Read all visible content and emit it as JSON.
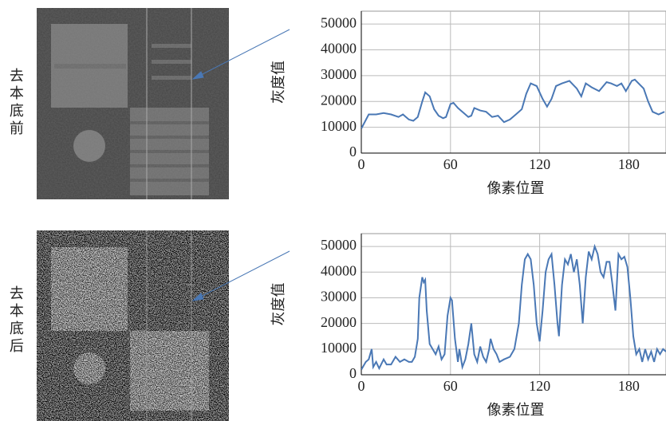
{
  "images": [
    {
      "label": "去本底前"
    },
    {
      "label": "去本底后"
    }
  ],
  "chart_data": [
    {
      "type": "line",
      "xlabel": "像素位置",
      "ylabel": "灰度值",
      "xlim": [
        0,
        205
      ],
      "ylim": [
        0,
        55000
      ],
      "xticks": [
        0,
        60,
        120,
        180
      ],
      "yticks": [
        0,
        10000,
        20000,
        30000,
        40000,
        50000
      ],
      "grid": true,
      "series": [
        {
          "color": "#4a78b5",
          "x": [
            0,
            5,
            10,
            15,
            20,
            25,
            28,
            32,
            35,
            38,
            41,
            43,
            46,
            49,
            52,
            55,
            57,
            60,
            62,
            65,
            68,
            72,
            74,
            76,
            80,
            84,
            88,
            92,
            96,
            100,
            104,
            108,
            111,
            114,
            118,
            122,
            125,
            128,
            131,
            135,
            140,
            145,
            148,
            151,
            155,
            160,
            165,
            168,
            172,
            175,
            178,
            182,
            184,
            190,
            193,
            196,
            200,
            204
          ],
          "values": [
            9500,
            15000,
            15000,
            15500,
            15000,
            14000,
            15000,
            13000,
            12500,
            14000,
            20000,
            23500,
            22000,
            17000,
            14500,
            13500,
            14000,
            19000,
            19500,
            17500,
            16000,
            14000,
            14500,
            17500,
            16500,
            16000,
            14000,
            14500,
            12000,
            13000,
            15000,
            17000,
            23000,
            27000,
            26000,
            21000,
            18000,
            21000,
            26000,
            27000,
            28000,
            25000,
            22000,
            27000,
            25500,
            24000,
            27500,
            27000,
            26000,
            27000,
            24000,
            28000,
            28500,
            25000,
            20000,
            16000,
            15000,
            16000
          ]
        }
      ]
    },
    {
      "type": "line",
      "xlabel": "像素位置",
      "ylabel": "灰度值",
      "xlim": [
        0,
        205
      ],
      "ylim": [
        0,
        55000
      ],
      "xticks": [
        0,
        60,
        120,
        180
      ],
      "yticks": [
        0,
        10000,
        20000,
        30000,
        40000,
        50000
      ],
      "grid": true,
      "series": [
        {
          "color": "#4a78b5",
          "x": [
            0,
            3,
            5,
            7,
            8,
            10,
            12,
            15,
            17,
            20,
            23,
            26,
            29,
            32,
            34,
            36,
            38,
            39,
            41,
            42,
            43,
            44,
            46,
            48,
            50,
            52,
            54,
            56,
            58,
            60,
            61,
            63,
            65,
            66,
            68,
            70,
            72,
            74,
            76,
            78,
            80,
            82,
            84,
            86,
            87,
            89,
            91,
            93,
            96,
            100,
            103,
            106,
            108,
            110,
            112,
            114,
            116,
            118,
            120,
            122,
            124,
            126,
            128,
            130,
            132,
            133,
            135,
            137,
            139,
            141,
            143,
            145,
            147,
            149,
            151,
            153,
            155,
            157,
            159,
            161,
            163,
            165,
            167,
            169,
            171,
            173,
            175,
            177,
            179,
            181,
            183,
            185,
            187,
            189,
            191,
            193,
            195,
            197,
            199,
            201,
            203,
            205
          ],
          "values": [
            2000,
            5000,
            6000,
            10000,
            3000,
            5000,
            2500,
            6000,
            4000,
            4000,
            7000,
            5000,
            6000,
            5000,
            5000,
            7000,
            14000,
            30000,
            38000,
            36000,
            37000,
            25000,
            12000,
            10000,
            8000,
            11000,
            6000,
            8000,
            23000,
            30000,
            29000,
            14000,
            5000,
            10000,
            3000,
            6000,
            12000,
            20000,
            8000,
            5000,
            11000,
            7000,
            5000,
            10000,
            14000,
            10000,
            8000,
            5000,
            6000,
            7000,
            10000,
            20000,
            35000,
            45000,
            47000,
            45000,
            35000,
            20000,
            13000,
            25000,
            40000,
            45000,
            47000,
            35000,
            20000,
            15000,
            35000,
            45000,
            43000,
            47000,
            40000,
            45000,
            35000,
            20000,
            38000,
            48000,
            45000,
            50000,
            47000,
            40000,
            38000,
            44000,
            44000,
            35000,
            25000,
            47000,
            45000,
            46000,
            42000,
            30000,
            15000,
            8000,
            10000,
            5000,
            10000,
            6000,
            9000,
            5000,
            10000,
            8000,
            10000,
            9000
          ]
        }
      ]
    }
  ]
}
